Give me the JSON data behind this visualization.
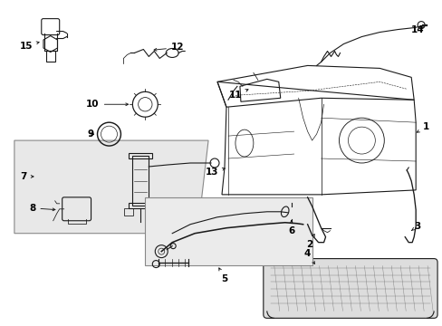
{
  "bg_color": "#ffffff",
  "line_color": "#1a1a1a",
  "label_color": "#000000",
  "box_fill": "#e8e8e8",
  "box_fill2": "#ebebeb",
  "figsize": [
    4.89,
    3.6
  ],
  "dpi": 100,
  "font_size": 7.5,
  "lw": 0.8
}
